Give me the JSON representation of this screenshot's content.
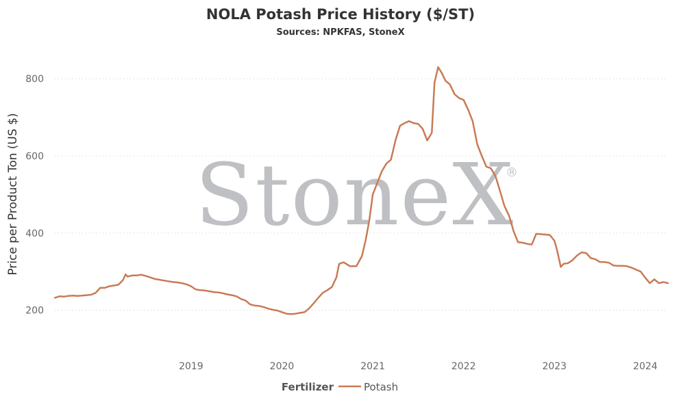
{
  "watermark": {
    "brand": "StoneX",
    "mark": "®"
  },
  "chart_data": {
    "type": "line",
    "title": "NOLA Potash Price History ($/ST)",
    "subtitle": "Sources: NPKFAS, StoneX",
    "ylabel": "Price per Product Ton (US $)",
    "xlabel": "",
    "xlim": [
      2018.0,
      2024.75
    ],
    "ylim": [
      100,
      880
    ],
    "y_ticks": [
      200,
      400,
      600,
      800
    ],
    "x_ticks": [
      2019,
      2020,
      2021,
      2022,
      2023,
      2024
    ],
    "grid": true,
    "legend": {
      "title": "Fertilizer",
      "placement": "bottom"
    },
    "series": [
      {
        "name": "Potash",
        "color": "#c87a55",
        "points": [
          [
            2018.0,
            232
          ],
          [
            2018.05,
            236
          ],
          [
            2018.1,
            235
          ],
          [
            2018.15,
            237
          ],
          [
            2018.2,
            238
          ],
          [
            2018.25,
            237
          ],
          [
            2018.3,
            238
          ],
          [
            2018.35,
            239
          ],
          [
            2018.4,
            240
          ],
          [
            2018.45,
            245
          ],
          [
            2018.5,
            258
          ],
          [
            2018.55,
            258
          ],
          [
            2018.6,
            262
          ],
          [
            2018.65,
            264
          ],
          [
            2018.7,
            266
          ],
          [
            2018.75,
            278
          ],
          [
            2018.78,
            293
          ],
          [
            2018.8,
            287
          ],
          [
            2018.85,
            290
          ],
          [
            2018.9,
            290
          ],
          [
            2018.95,
            292
          ],
          [
            2019.0,
            289
          ],
          [
            2019.05,
            285
          ],
          [
            2019.1,
            281
          ],
          [
            2019.15,
            279
          ],
          [
            2019.2,
            277
          ],
          [
            2019.25,
            275
          ],
          [
            2019.3,
            273
          ],
          [
            2019.35,
            272
          ],
          [
            2019.4,
            270
          ],
          [
            2019.45,
            267
          ],
          [
            2019.5,
            262
          ],
          [
            2019.55,
            254
          ],
          [
            2019.6,
            252
          ],
          [
            2019.65,
            251
          ],
          [
            2019.7,
            249
          ],
          [
            2019.75,
            247
          ],
          [
            2019.8,
            246
          ],
          [
            2019.85,
            244
          ],
          [
            2019.9,
            241
          ],
          [
            2019.95,
            239
          ],
          [
            2020.0,
            236
          ],
          [
            2020.05,
            229
          ],
          [
            2020.1,
            225
          ],
          [
            2020.15,
            215
          ],
          [
            2020.2,
            212
          ],
          [
            2020.25,
            211
          ],
          [
            2020.3,
            208
          ],
          [
            2020.35,
            204
          ],
          [
            2020.4,
            201
          ],
          [
            2020.45,
            199
          ],
          [
            2020.5,
            195
          ],
          [
            2020.55,
            191
          ],
          [
            2020.6,
            190
          ],
          [
            2020.65,
            191
          ],
          [
            2020.7,
            193
          ],
          [
            2020.75,
            195
          ],
          [
            2020.8,
            205
          ],
          [
            2020.85,
            218
          ],
          [
            2020.9,
            232
          ],
          [
            2020.95,
            245
          ],
          [
            2021.0,
            252
          ],
          [
            2021.05,
            260
          ],
          [
            2021.1,
            285
          ],
          [
            2021.13,
            320
          ],
          [
            2021.18,
            324
          ],
          [
            2021.25,
            314
          ],
          [
            2021.32,
            314
          ],
          [
            2021.38,
            340
          ],
          [
            2021.42,
            380
          ],
          [
            2021.46,
            430
          ],
          [
            2021.5,
            500
          ],
          [
            2021.55,
            530
          ],
          [
            2021.6,
            560
          ],
          [
            2021.65,
            580
          ],
          [
            2021.7,
            590
          ],
          [
            2021.75,
            640
          ],
          [
            2021.8,
            678
          ],
          [
            2021.85,
            685
          ],
          [
            2021.9,
            690
          ],
          [
            2021.95,
            685
          ],
          [
            2022.0,
            683
          ],
          [
            2022.05,
            670
          ],
          [
            2022.1,
            640
          ],
          [
            2022.15,
            660
          ],
          [
            2022.18,
            790
          ],
          [
            2022.22,
            830
          ],
          [
            2022.26,
            815
          ],
          [
            2022.3,
            795
          ],
          [
            2022.35,
            785
          ],
          [
            2022.4,
            760
          ],
          [
            2022.45,
            750
          ],
          [
            2022.5,
            745
          ],
          [
            2022.55,
            720
          ],
          [
            2022.6,
            690
          ],
          [
            2022.65,
            630
          ],
          [
            2022.7,
            600
          ],
          [
            2022.75,
            572
          ],
          [
            2022.8,
            568
          ],
          [
            2022.85,
            548
          ],
          [
            2022.9,
            510
          ],
          [
            2022.95,
            470
          ],
          [
            2023.0,
            445
          ],
          [
            2023.05,
            405
          ],
          [
            2023.1,
            376
          ],
          [
            2023.15,
            375
          ],
          [
            2023.2,
            372
          ],
          [
            2023.25,
            370
          ],
          [
            2023.3,
            398
          ],
          [
            2023.35,
            397
          ],
          [
            2023.4,
            396
          ],
          [
            2023.45,
            395
          ],
          [
            2023.5,
            380
          ],
          [
            2023.53,
            355
          ],
          [
            2023.57,
            312
          ],
          [
            2023.6,
            320
          ],
          [
            2023.65,
            322
          ],
          [
            2023.7,
            330
          ],
          [
            2023.75,
            342
          ],
          [
            2023.8,
            350
          ],
          [
            2023.85,
            348
          ],
          [
            2023.9,
            335
          ],
          [
            2023.95,
            332
          ],
          [
            2024.0,
            325
          ],
          [
            2024.05,
            325
          ],
          [
            2024.1,
            323
          ],
          [
            2024.15,
            316
          ],
          [
            2024.2,
            315
          ],
          [
            2024.25,
            315
          ],
          [
            2024.3,
            314
          ],
          [
            2024.35,
            310
          ],
          [
            2024.4,
            305
          ],
          [
            2024.45,
            300
          ],
          [
            2024.5,
            284
          ],
          [
            2024.55,
            270
          ],
          [
            2024.6,
            280
          ],
          [
            2024.65,
            270
          ],
          [
            2024.7,
            273
          ],
          [
            2024.75,
            270
          ]
        ]
      }
    ]
  }
}
